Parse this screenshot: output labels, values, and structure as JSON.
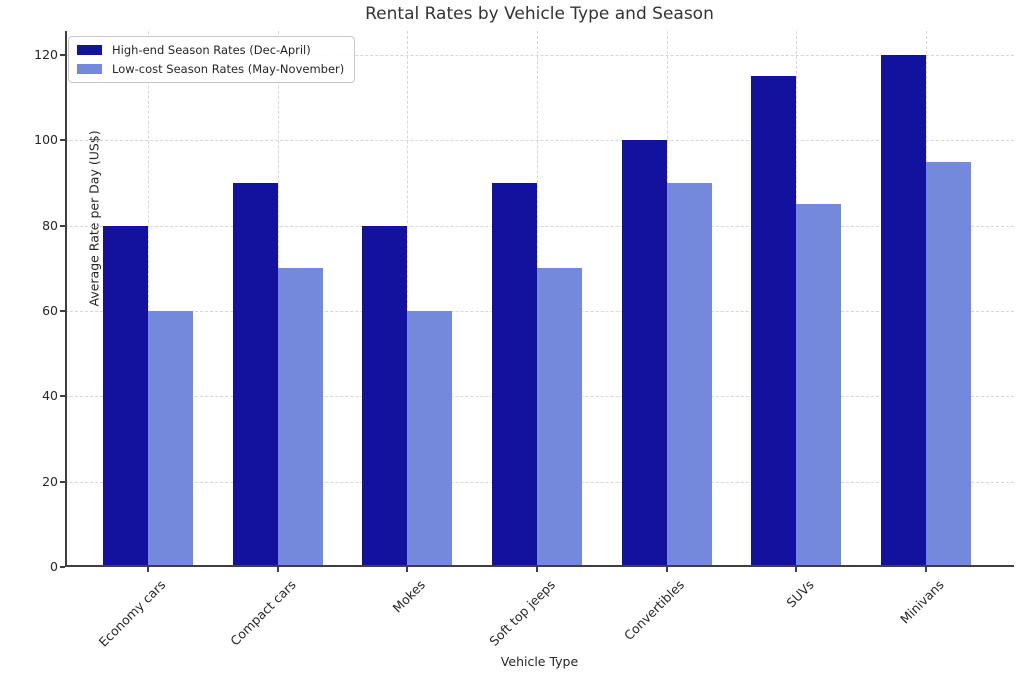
{
  "chart_data": {
    "type": "bar",
    "title": "Rental Rates by Vehicle Type and Season",
    "xlabel": "Vehicle Type",
    "ylabel": "Average Rate per Day (US$)",
    "categories": [
      "Economy cars",
      "Compact cars",
      "Mokes",
      "Soft top jeeps",
      "Convertibles",
      "SUVs",
      "Minivans"
    ],
    "series": [
      {
        "name": "High-end Season Rates (Dec-April)",
        "color": "#12129e",
        "values": [
          80,
          90,
          80,
          90,
          100,
          115,
          120
        ]
      },
      {
        "name": "Low-cost Season Rates (May-November)",
        "color": "#7589dc",
        "values": [
          60,
          70,
          60,
          70,
          90,
          85,
          95
        ]
      }
    ],
    "yticks": [
      0,
      20,
      40,
      60,
      80,
      100,
      120
    ],
    "ylim": [
      0,
      125.6
    ],
    "grid": "both-dashed",
    "legend_position": "upper-left"
  },
  "colors": {
    "background": "#ffffff",
    "axis": "#3f3f3f",
    "grid": "#d6d6d6",
    "text": "#262626",
    "title": "#333333",
    "legend_border": "#c9c9c9"
  }
}
